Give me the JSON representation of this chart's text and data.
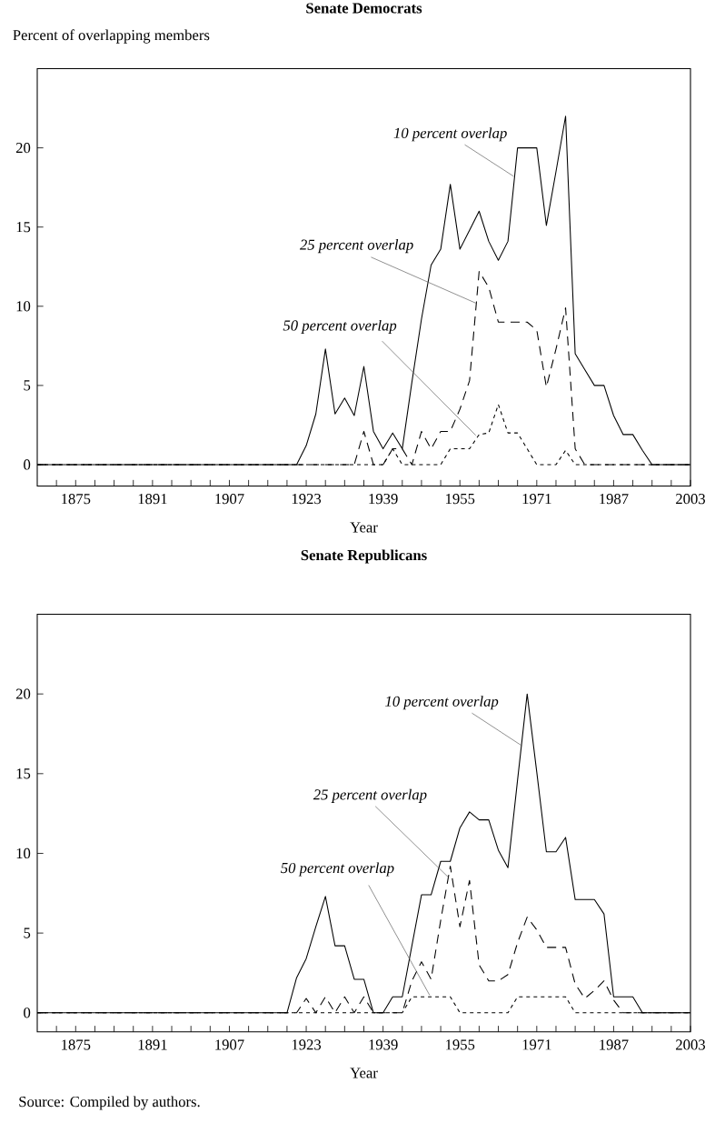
{
  "chart_data": [
    {
      "type": "line",
      "title": "Senate Democrats",
      "ylabel": "Percent of overlapping members",
      "xlabel": "Year",
      "x": [
        1867,
        1869,
        1871,
        1873,
        1875,
        1877,
        1879,
        1881,
        1883,
        1885,
        1887,
        1889,
        1891,
        1893,
        1895,
        1897,
        1899,
        1901,
        1903,
        1905,
        1907,
        1909,
        1911,
        1913,
        1915,
        1917,
        1919,
        1921,
        1923,
        1925,
        1927,
        1929,
        1931,
        1933,
        1935,
        1937,
        1939,
        1941,
        1943,
        1945,
        1947,
        1949,
        1951,
        1953,
        1955,
        1957,
        1959,
        1961,
        1963,
        1965,
        1967,
        1969,
        1971,
        1973,
        1975,
        1977,
        1979,
        1981,
        1983,
        1985,
        1987,
        1989,
        1991,
        1993,
        1995,
        1997,
        1999,
        2001,
        2003
      ],
      "series": [
        {
          "color": "#000000",
          "line_style": "solid",
          "values": [
            0,
            0,
            0,
            0,
            0,
            0,
            0,
            0,
            0,
            0,
            0,
            0,
            0,
            0,
            0,
            0,
            0,
            0,
            0,
            0,
            0,
            0,
            0,
            0,
            0,
            0,
            0,
            0,
            1.2,
            3.2,
            7.3,
            3.2,
            4.2,
            3.1,
            6.2,
            2.1,
            1.0,
            2.0,
            1.0,
            5.2,
            9.2,
            12.6,
            13.6,
            17.7,
            13.6,
            14.8,
            16.0,
            14.1,
            12.9,
            14.1,
            20.0,
            20.0,
            20.0,
            15.1,
            18.5,
            22.0,
            7.0,
            6.0,
            5.0,
            5.0,
            3.1,
            1.9,
            1.9,
            0.9,
            0,
            0,
            0,
            0,
            0
          ]
        },
        {
          "color": "#000000",
          "line_style": "dashed",
          "values": [
            0,
            0,
            0,
            0,
            0,
            0,
            0,
            0,
            0,
            0,
            0,
            0,
            0,
            0,
            0,
            0,
            0,
            0,
            0,
            0,
            0,
            0,
            0,
            0,
            0,
            0,
            0,
            0,
            0,
            0,
            0,
            0,
            0,
            0,
            2.1,
            0,
            0,
            1.0,
            1.0,
            0,
            2.1,
            1.0,
            2.1,
            2.1,
            3.5,
            5.3,
            12.2,
            11.2,
            9.0,
            9.0,
            9.0,
            9.0,
            8.5,
            4.9,
            7.3,
            9.9,
            1.0,
            0,
            0,
            0,
            0,
            0,
            0,
            0,
            0,
            0,
            0,
            0,
            0
          ]
        },
        {
          "color": "#000000",
          "line_style": "dotted",
          "values": [
            0,
            0,
            0,
            0,
            0,
            0,
            0,
            0,
            0,
            0,
            0,
            0,
            0,
            0,
            0,
            0,
            0,
            0,
            0,
            0,
            0,
            0,
            0,
            0,
            0,
            0,
            0,
            0,
            0,
            0,
            0,
            0,
            0,
            0,
            0,
            0,
            0,
            1.0,
            0,
            0,
            0,
            0,
            0,
            1.0,
            1.0,
            1.0,
            1.9,
            2.0,
            3.8,
            2.0,
            2.0,
            1.0,
            0,
            0,
            0,
            0.9,
            0,
            0,
            0,
            0,
            0,
            0,
            0,
            0,
            0,
            0,
            0,
            0,
            0
          ]
        }
      ],
      "xlim": [
        1867,
        2003
      ],
      "ylim": [
        -1.35,
        25
      ],
      "xticks": [
        {
          "value": 1871,
          "label": null
        },
        1875,
        {
          "value": 1879,
          "label": null
        },
        {
          "value": 1883,
          "label": null
        },
        {
          "value": 1887,
          "label": null
        },
        1891,
        {
          "value": 1895,
          "label": null
        },
        {
          "value": 1899,
          "label": null
        },
        {
          "value": 1903,
          "label": null
        },
        1907,
        {
          "value": 1911,
          "label": null
        },
        {
          "value": 1915,
          "label": null
        },
        {
          "value": 1919,
          "label": null
        },
        1923,
        {
          "value": 1927,
          "label": null
        },
        {
          "value": 1931,
          "label": null
        },
        {
          "value": 1935,
          "label": null
        },
        1939,
        {
          "value": 1943,
          "label": null
        },
        {
          "value": 1947,
          "label": null
        },
        {
          "value": 1951,
          "label": null
        },
        1955,
        {
          "value": 1959,
          "label": null
        },
        {
          "value": 1963,
          "label": null
        },
        {
          "value": 1967,
          "label": null
        },
        1971,
        {
          "value": 1975,
          "label": null
        },
        {
          "value": 1979,
          "label": null
        },
        {
          "value": 1983,
          "label": null
        },
        1987,
        {
          "value": 1991,
          "label": null
        },
        {
          "value": 1995,
          "label": null
        },
        {
          "value": 1999,
          "label": null
        },
        2003
      ],
      "yticks": [
        0,
        5,
        10,
        15,
        20
      ],
      "annotations": [
        {
          "text": "10 percent overlap",
          "x": 1966.2,
          "y": 18.2
        },
        {
          "text": "25 percent overlap",
          "x": 1958.3,
          "y": 10.2
        },
        {
          "text": "50 percent overlap",
          "x": 1958.3,
          "y": 1.85
        }
      ]
    },
    {
      "type": "line",
      "title": "Senate Republicans",
      "xlabel": "Year",
      "x": [
        1867,
        1869,
        1871,
        1873,
        1875,
        1877,
        1879,
        1881,
        1883,
        1885,
        1887,
        1889,
        1891,
        1893,
        1895,
        1897,
        1899,
        1901,
        1903,
        1905,
        1907,
        1909,
        1911,
        1913,
        1915,
        1917,
        1919,
        1921,
        1923,
        1925,
        1927,
        1929,
        1931,
        1933,
        1935,
        1937,
        1939,
        1941,
        1943,
        1945,
        1947,
        1949,
        1951,
        1953,
        1955,
        1957,
        1959,
        1961,
        1963,
        1965,
        1967,
        1969,
        1971,
        1973,
        1975,
        1977,
        1979,
        1981,
        1983,
        1985,
        1987,
        1989,
        1991,
        1993,
        1995,
        1997,
        1999,
        2001,
        2003
      ],
      "series": [
        {
          "color": "#000000",
          "line_style": "solid",
          "values": [
            0,
            0,
            0,
            0,
            0,
            0,
            0,
            0,
            0,
            0,
            0,
            0,
            0,
            0,
            0,
            0,
            0,
            0,
            0,
            0,
            0,
            0,
            0,
            0,
            0,
            0,
            0,
            2.2,
            3.4,
            5.4,
            7.3,
            4.2,
            4.2,
            2.1,
            2.1,
            0,
            0,
            1.0,
            1.0,
            4.2,
            7.4,
            7.4,
            9.5,
            9.5,
            11.6,
            12.6,
            12.1,
            12.1,
            10.2,
            9.1,
            14.6,
            20.0,
            15.1,
            10.1,
            10.1,
            11.0,
            7.1,
            7.1,
            7.1,
            6.2,
            1.0,
            1.0,
            1.0,
            0,
            0,
            0,
            0,
            0,
            0
          ]
        },
        {
          "color": "#000000",
          "line_style": "dashed",
          "values": [
            0,
            0,
            0,
            0,
            0,
            0,
            0,
            0,
            0,
            0,
            0,
            0,
            0,
            0,
            0,
            0,
            0,
            0,
            0,
            0,
            0,
            0,
            0,
            0,
            0,
            0,
            0,
            0,
            0.9,
            0,
            1.0,
            0,
            1.0,
            0,
            1.0,
            0,
            0,
            0,
            0,
            2.0,
            3.2,
            2.1,
            5.8,
            9.2,
            5.4,
            8.3,
            3.0,
            2.0,
            2.0,
            2.4,
            4.4,
            6.0,
            5.2,
            4.1,
            4.1,
            4.1,
            1.8,
            0.9,
            1.4,
            2.0,
            0.8,
            0,
            0,
            0,
            0,
            0,
            0,
            0,
            0
          ]
        },
        {
          "color": "#000000",
          "line_style": "dotted",
          "values": [
            0,
            0,
            0,
            0,
            0,
            0,
            0,
            0,
            0,
            0,
            0,
            0,
            0,
            0,
            0,
            0,
            0,
            0,
            0,
            0,
            0,
            0,
            0,
            0,
            0,
            0,
            0,
            0,
            0,
            0,
            0,
            0,
            0,
            0,
            0,
            0,
            0,
            0,
            0,
            1.0,
            1.0,
            1.0,
            1.0,
            1.0,
            0,
            0,
            0,
            0,
            0,
            0,
            1.0,
            1.0,
            1.0,
            1.0,
            1.0,
            1.0,
            0,
            0,
            0,
            0,
            0,
            0,
            0,
            0,
            0,
            0,
            0,
            0,
            0
          ]
        }
      ],
      "xlim": [
        1867,
        2003
      ],
      "ylim": [
        -1.2,
        25
      ],
      "xticks": [
        {
          "value": 1871,
          "label": null
        },
        1875,
        {
          "value": 1879,
          "label": null
        },
        {
          "value": 1883,
          "label": null
        },
        {
          "value": 1887,
          "label": null
        },
        1891,
        {
          "value": 1895,
          "label": null
        },
        {
          "value": 1899,
          "label": null
        },
        {
          "value": 1903,
          "label": null
        },
        1907,
        {
          "value": 1911,
          "label": null
        },
        {
          "value": 1915,
          "label": null
        },
        {
          "value": 1919,
          "label": null
        },
        1923,
        {
          "value": 1927,
          "label": null
        },
        {
          "value": 1931,
          "label": null
        },
        {
          "value": 1935,
          "label": null
        },
        1939,
        {
          "value": 1943,
          "label": null
        },
        {
          "value": 1947,
          "label": null
        },
        {
          "value": 1951,
          "label": null
        },
        1955,
        {
          "value": 1959,
          "label": null
        },
        {
          "value": 1963,
          "label": null
        },
        {
          "value": 1967,
          "label": null
        },
        1971,
        {
          "value": 1975,
          "label": null
        },
        {
          "value": 1979,
          "label": null
        },
        {
          "value": 1983,
          "label": null
        },
        1987,
        {
          "value": 1991,
          "label": null
        },
        {
          "value": 1995,
          "label": null
        },
        {
          "value": 1999,
          "label": null
        },
        2003
      ],
      "yticks": [
        0,
        5,
        10,
        15,
        20
      ],
      "annotations": [
        {
          "text": "10 percent overlap",
          "x": 1967.9,
          "y": 16.75
        },
        {
          "text": "25 percent overlap",
          "x": 1952.6,
          "y": 8.5
        },
        {
          "text": "50 percent overlap",
          "x": 1948.7,
          "y": 1.1
        },
        "Source: Compiled by authors."
      ]
    }
  ]
}
